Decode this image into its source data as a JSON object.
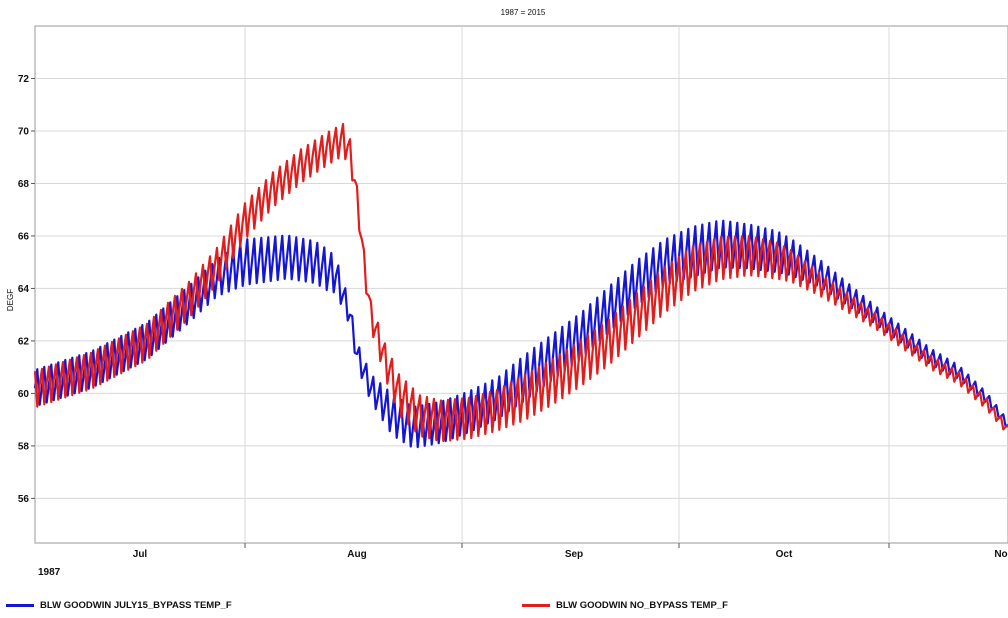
{
  "chart_data": {
    "type": "line",
    "title": "1987 = 2015",
    "xlabel": "",
    "ylabel": "DEGF",
    "ylim": [
      54.3,
      74.0
    ],
    "y_ticks": [
      56,
      58,
      60,
      62,
      64,
      66,
      68,
      70,
      72
    ],
    "x_ticks": [
      {
        "label": "Jul",
        "day": 15
      },
      {
        "label": "Aug",
        "day": 46
      },
      {
        "label": "Sep",
        "day": 77
      },
      {
        "label": "Oct",
        "day": 107
      },
      {
        "label": "No",
        "day": 138
      }
    ],
    "x_gridlines_days": [
      30,
      61,
      92,
      122
    ],
    "xlim_days": [
      0,
      139
    ],
    "year_label": "1987",
    "grid": true,
    "legend_position": "bottom",
    "series": [
      {
        "name": "BLW GOODWIN JULY15_BYPASS TEMP_F",
        "color": "#1515d6",
        "mean": [
          [
            0,
            60.2
          ],
          [
            8,
            60.9
          ],
          [
            16,
            62.0
          ],
          [
            22,
            63.4
          ],
          [
            26,
            64.4
          ],
          [
            30,
            65.0
          ],
          [
            36,
            65.2
          ],
          [
            40,
            65.0
          ],
          [
            43,
            64.5
          ],
          [
            45,
            63.0
          ],
          [
            46,
            61.5
          ],
          [
            48,
            60.2
          ],
          [
            51,
            59.2
          ],
          [
            54,
            58.7
          ],
          [
            58,
            58.9
          ],
          [
            62,
            59.3
          ],
          [
            66,
            59.8
          ],
          [
            70,
            60.6
          ],
          [
            74,
            61.4
          ],
          [
            78,
            62.2
          ],
          [
            82,
            63.2
          ],
          [
            86,
            64.2
          ],
          [
            90,
            65.0
          ],
          [
            94,
            65.4
          ],
          [
            98,
            65.7
          ],
          [
            102,
            65.6
          ],
          [
            106,
            65.4
          ],
          [
            108,
            65.2
          ],
          [
            112,
            64.6
          ],
          [
            116,
            63.8
          ],
          [
            120,
            63.0
          ],
          [
            124,
            62.2
          ],
          [
            128,
            61.4
          ],
          [
            132,
            60.8
          ],
          [
            136,
            59.8
          ],
          [
            139,
            58.8
          ]
        ],
        "amp": [
          [
            0,
            0.8
          ],
          [
            26,
            0.8
          ],
          [
            30,
            1.0
          ],
          [
            42,
            0.9
          ],
          [
            45,
            0.5
          ],
          [
            48,
            0.6
          ],
          [
            51,
            0.9
          ],
          [
            66,
            0.9
          ],
          [
            70,
            1.0
          ],
          [
            90,
            1.0
          ],
          [
            94,
            1.1
          ],
          [
            100,
            1.0
          ],
          [
            106,
            0.9
          ],
          [
            112,
            0.6
          ],
          [
            120,
            0.4
          ],
          [
            128,
            0.35
          ],
          [
            136,
            0.25
          ],
          [
            139,
            0.2
          ]
        ]
      },
      {
        "name": "BLW GOODWIN NO_BYPASS TEMP_F",
        "color": "#e01e1e",
        "mean": [
          [
            0,
            60.2
          ],
          [
            8,
            60.9
          ],
          [
            16,
            62.0
          ],
          [
            22,
            63.6
          ],
          [
            26,
            64.9
          ],
          [
            30,
            66.6
          ],
          [
            34,
            67.8
          ],
          [
            38,
            68.7
          ],
          [
            42,
            69.4
          ],
          [
            44,
            69.7
          ],
          [
            45,
            69.2
          ],
          [
            46,
            67.5
          ],
          [
            47,
            65.0
          ],
          [
            48,
            63.0
          ],
          [
            50,
            61.3
          ],
          [
            52,
            60.0
          ],
          [
            55,
            59.2
          ],
          [
            58,
            59.0
          ],
          [
            62,
            59.1
          ],
          [
            66,
            59.4
          ],
          [
            70,
            59.9
          ],
          [
            74,
            60.5
          ],
          [
            78,
            61.2
          ],
          [
            82,
            62.0
          ],
          [
            86,
            63.0
          ],
          [
            90,
            64.0
          ],
          [
            94,
            64.8
          ],
          [
            98,
            65.2
          ],
          [
            102,
            65.3
          ],
          [
            106,
            65.1
          ],
          [
            108,
            64.9
          ],
          [
            112,
            64.2
          ],
          [
            116,
            63.5
          ],
          [
            120,
            62.8
          ],
          [
            124,
            62.0
          ],
          [
            128,
            61.2
          ],
          [
            132,
            60.6
          ],
          [
            136,
            59.6
          ],
          [
            139,
            58.6
          ]
        ],
        "amp": [
          [
            0,
            0.8
          ],
          [
            26,
            0.8
          ],
          [
            30,
            0.8
          ],
          [
            44,
            0.7
          ],
          [
            46,
            0.5
          ],
          [
            48,
            0.6
          ],
          [
            52,
            0.9
          ],
          [
            66,
            0.9
          ],
          [
            70,
            1.0
          ],
          [
            90,
            1.0
          ],
          [
            94,
            1.0
          ],
          [
            100,
            0.9
          ],
          [
            106,
            0.8
          ],
          [
            112,
            0.5
          ],
          [
            120,
            0.35
          ],
          [
            128,
            0.3
          ],
          [
            136,
            0.25
          ],
          [
            139,
            0.2
          ]
        ]
      }
    ]
  }
}
